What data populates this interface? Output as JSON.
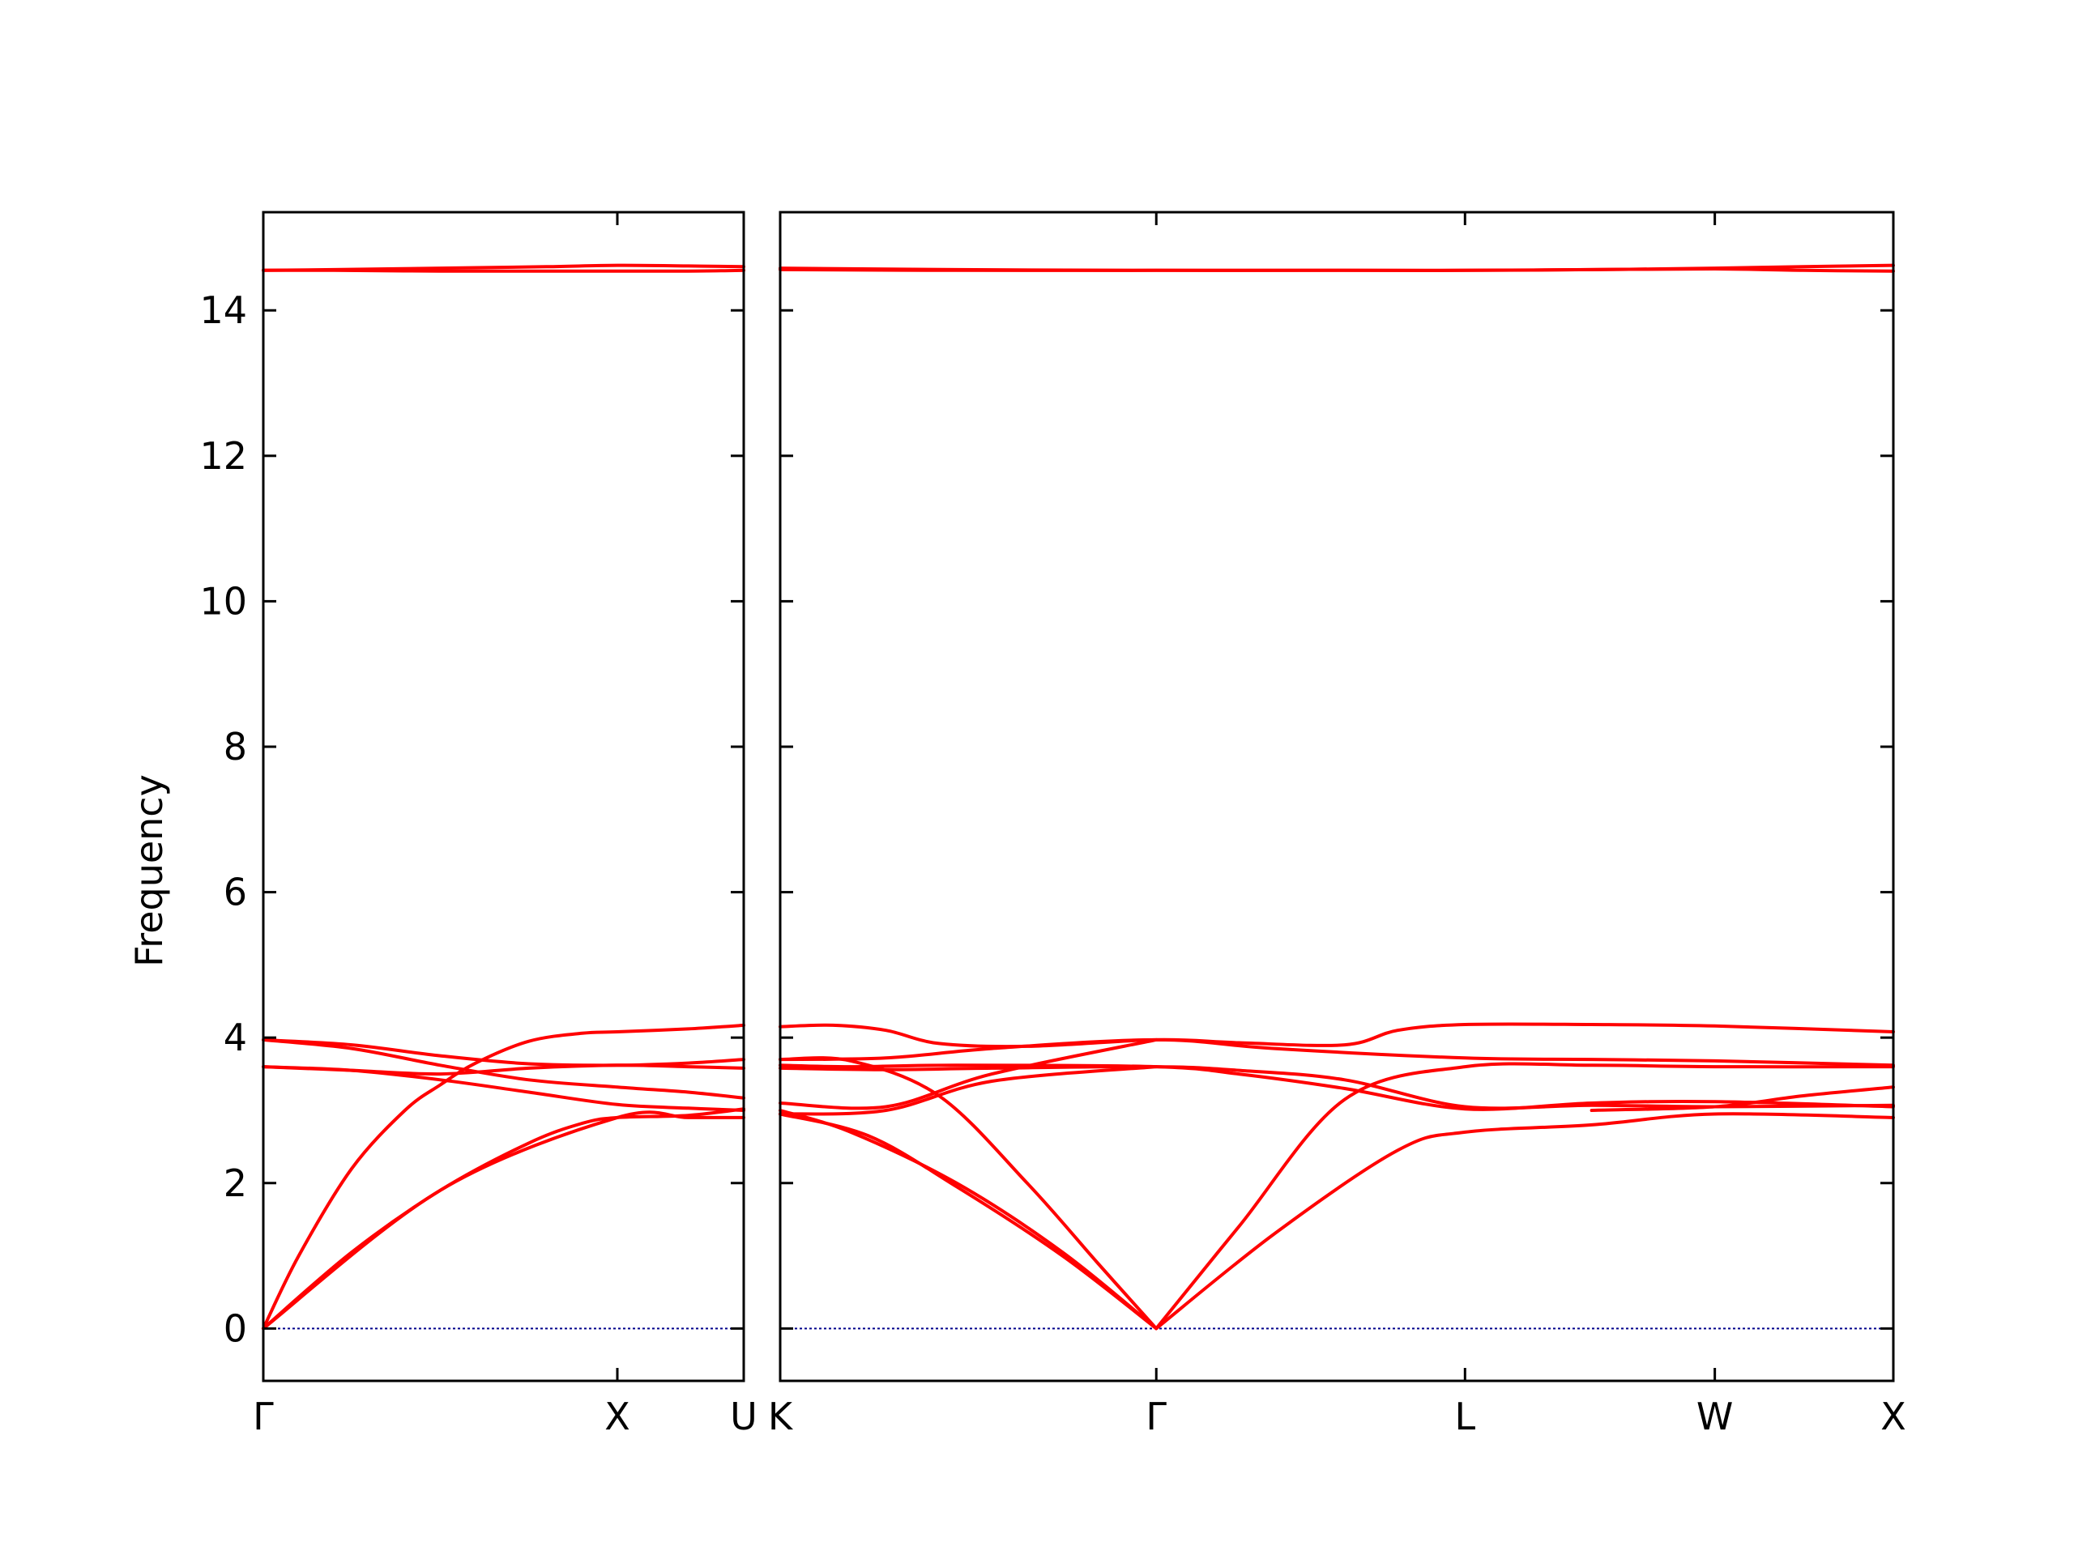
{
  "chart_data": {
    "type": "line",
    "ylabel": "Frequency",
    "ylim": [
      -0.72,
      15.35
    ],
    "yticks": [
      0,
      2,
      4,
      6,
      8,
      10,
      12,
      14
    ],
    "colors": {
      "bands": "#ff0000",
      "zero_line": "#00008b",
      "axes": "#000000"
    },
    "panels": [
      {
        "name": "Γ-X-U",
        "x_range": [
          0,
          1.357
        ],
        "ticks": [
          {
            "label": "Γ",
            "x": 0
          },
          {
            "label": "X",
            "x": 1.0
          },
          {
            "label": "U",
            "x": 1.357
          }
        ],
        "series": [
          {
            "x": [
              0,
              0.2,
              0.5,
              0.8,
              1.0,
              1.2,
              1.357
            ],
            "y": [
              14.55,
              14.56,
              14.58,
              14.6,
              14.62,
              14.61,
              14.6
            ]
          },
          {
            "x": [
              0,
              0.2,
              0.5,
              0.8,
              1.0,
              1.2,
              1.357
            ],
            "y": [
              14.55,
              14.55,
              14.54,
              14.54,
              14.54,
              14.54,
              14.55
            ]
          },
          {
            "x": [
              0,
              0.25,
              0.5,
              0.75,
              1.0,
              1.2,
              1.357
            ],
            "y": [
              3.97,
              3.9,
              3.75,
              3.64,
              3.62,
              3.65,
              3.7
            ]
          },
          {
            "x": [
              0,
              0.25,
              0.5,
              0.75,
              1.0,
              1.2,
              1.357
            ],
            "y": [
              3.97,
              3.85,
              3.62,
              3.42,
              3.32,
              3.25,
              3.17
            ]
          },
          {
            "x": [
              0,
              0.25,
              0.5,
              0.75,
              1.0,
              1.2,
              1.357
            ],
            "y": [
              3.6,
              3.55,
              3.42,
              3.25,
              3.08,
              3.03,
              3.0
            ]
          },
          {
            "x": [
              0,
              0.25,
              0.5,
              0.75,
              1.0,
              1.2,
              1.357
            ],
            "y": [
              3.6,
              3.55,
              3.5,
              3.58,
              3.62,
              3.6,
              3.58
            ]
          },
          {
            "x": [
              0,
              0.1,
              0.25,
              0.4,
              0.5,
              0.6,
              0.75,
              0.9,
              1.0,
              1.2,
              1.357
            ],
            "y": [
              0,
              1.0,
              2.2,
              3.0,
              3.35,
              3.65,
              3.95,
              4.06,
              4.08,
              4.12,
              4.17
            ]
          },
          {
            "x": [
              0,
              0.25,
              0.5,
              0.75,
              0.9,
              1.0,
              1.2,
              1.357
            ],
            "y": [
              0,
              1.05,
              1.9,
              2.55,
              2.82,
              2.9,
              2.93,
              3.02
            ]
          },
          {
            "x": [
              0,
              0.5,
              1.0,
              1.2,
              1.357
            ],
            "y": [
              0,
              1.9,
              2.9,
              2.9,
              2.9
            ]
          }
        ]
      },
      {
        "name": "K-Γ-L-W-X",
        "x_range": [
          0,
          3.155
        ],
        "ticks": [
          {
            "label": "K",
            "x": 0
          },
          {
            "label": "Γ",
            "x": 1.066
          },
          {
            "label": "L",
            "x": 1.941
          },
          {
            "label": "W",
            "x": 2.649
          },
          {
            "label": "X",
            "x": 3.155
          }
        ],
        "series": [
          {
            "x": [
              0,
              0.5,
              1.066,
              1.6,
              1.941,
              2.3,
              2.649,
              2.9,
              3.155
            ],
            "y": [
              14.58,
              14.56,
              14.55,
              14.55,
              14.55,
              14.56,
              14.58,
              14.6,
              14.62
            ]
          },
          {
            "x": [
              0,
              0.5,
              1.066,
              1.6,
              1.941,
              2.3,
              2.649,
              2.9,
              3.155
            ],
            "y": [
              14.56,
              14.55,
              14.55,
              14.55,
              14.55,
              14.56,
              14.57,
              14.55,
              14.54
            ]
          },
          {
            "x": [
              0,
              0.15,
              0.3,
              0.45,
              0.7,
              1.066,
              1.3,
              1.6,
              1.75,
              1.941,
              2.3,
              2.649,
              3.155
            ],
            "y": [
              4.15,
              4.17,
              4.1,
              3.92,
              3.88,
              3.97,
              3.93,
              3.9,
              4.1,
              4.18,
              4.18,
              4.16,
              4.08
            ]
          },
          {
            "x": [
              0,
              0.3,
              0.6,
              1.066,
              1.4,
              1.941,
              2.3,
              2.649,
              3.155
            ],
            "y": [
              3.7,
              3.72,
              3.85,
              3.97,
              3.85,
              3.72,
              3.7,
              3.68,
              3.62
            ]
          },
          {
            "x": [
              0,
              0.3,
              0.6,
              1.066,
              1.3,
              1.6,
              1.941,
              2.3,
              2.649,
              3.155
            ],
            "y": [
              3.58,
              3.56,
              3.58,
              3.6,
              3.55,
              3.42,
              3.05,
              3.07,
              3.05,
              3.07
            ]
          },
          {
            "x": [
              0,
              0.2,
              0.5,
              1.066,
              1.3,
              1.6,
              1.941,
              2.3,
              2.649,
              3.155
            ],
            "y": [
              3.62,
              3.6,
              3.62,
              3.6,
              3.5,
              3.3,
              3.02,
              3.1,
              3.12,
              3.05
            ]
          },
          {
            "x": [
              0,
              0.3,
              0.6,
              1.066
            ],
            "y": [
              3.1,
              3.05,
              3.5,
              3.97
            ]
          },
          {
            "x": [
              0,
              0.3,
              0.6,
              1.066
            ],
            "y": [
              2.95,
              3.0,
              3.4,
              3.6
            ]
          },
          {
            "x": [
              0,
              0.2,
              0.45,
              0.7,
              0.9,
              1.066
            ],
            "y": [
              3.7,
              3.68,
              3.2,
              2.0,
              0.9,
              0
            ]
          },
          {
            "x": [
              0,
              0.2,
              0.5,
              0.8,
              1.066
            ],
            "y": [
              3.0,
              2.7,
              2.0,
              1.05,
              0
            ]
          },
          {
            "x": [
              0,
              0.25,
              0.5,
              0.8,
              1.066
            ],
            "y": [
              2.95,
              2.65,
              1.95,
              1.0,
              0
            ]
          },
          {
            "x": [
              1.066,
              1.3,
              1.6,
              1.941,
              2.3,
              2.649,
              3.155
            ],
            "y": [
              0,
              1.4,
              3.15,
              3.6,
              3.62,
              3.6,
              3.6
            ]
          },
          {
            "x": [
              1.066,
              1.4,
              1.75,
              1.941,
              2.3,
              2.649,
              3.155
            ],
            "y": [
              0,
              1.3,
              2.45,
              2.7,
              2.8,
              2.95,
              2.9
            ]
          },
          {
            "x": [
              2.3,
              2.649,
              2.9,
              3.155
            ],
            "y": [
              3.0,
              3.05,
              3.2,
              3.32
            ]
          }
        ]
      }
    ]
  }
}
